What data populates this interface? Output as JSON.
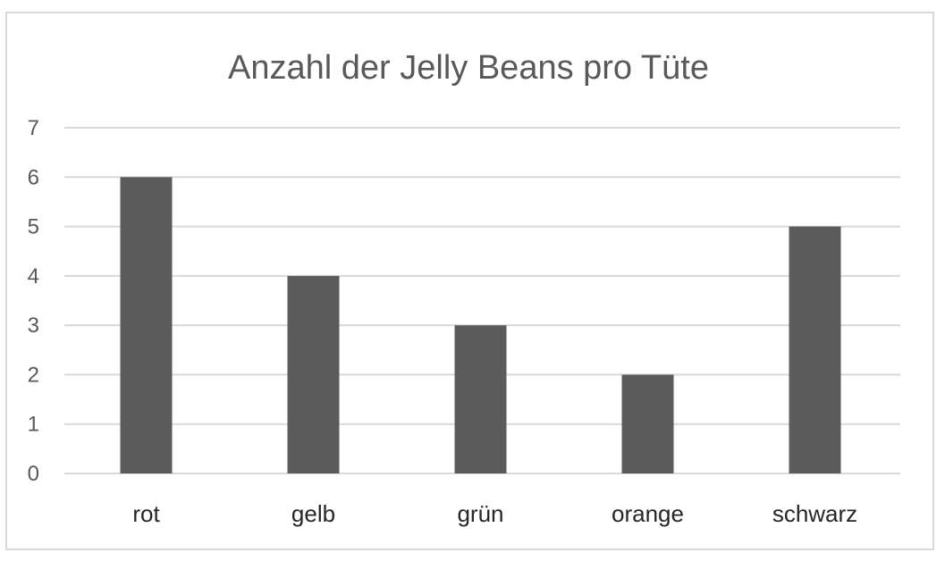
{
  "chart_data": {
    "type": "bar",
    "title": "Anzahl der Jelly Beans pro Tüte",
    "categories": [
      "rot",
      "gelb",
      "grün",
      "orange",
      "schwarz"
    ],
    "values": [
      6,
      4,
      3,
      2,
      5
    ],
    "xlabel": "",
    "ylabel": "",
    "ylim": [
      0,
      7
    ],
    "yticks": [
      "0",
      "1",
      "2",
      "3",
      "4",
      "5",
      "6",
      "7"
    ],
    "grid": true,
    "legend": "none",
    "bar_color": "#5b5b5b",
    "grid_color": "#d9d9d9"
  }
}
